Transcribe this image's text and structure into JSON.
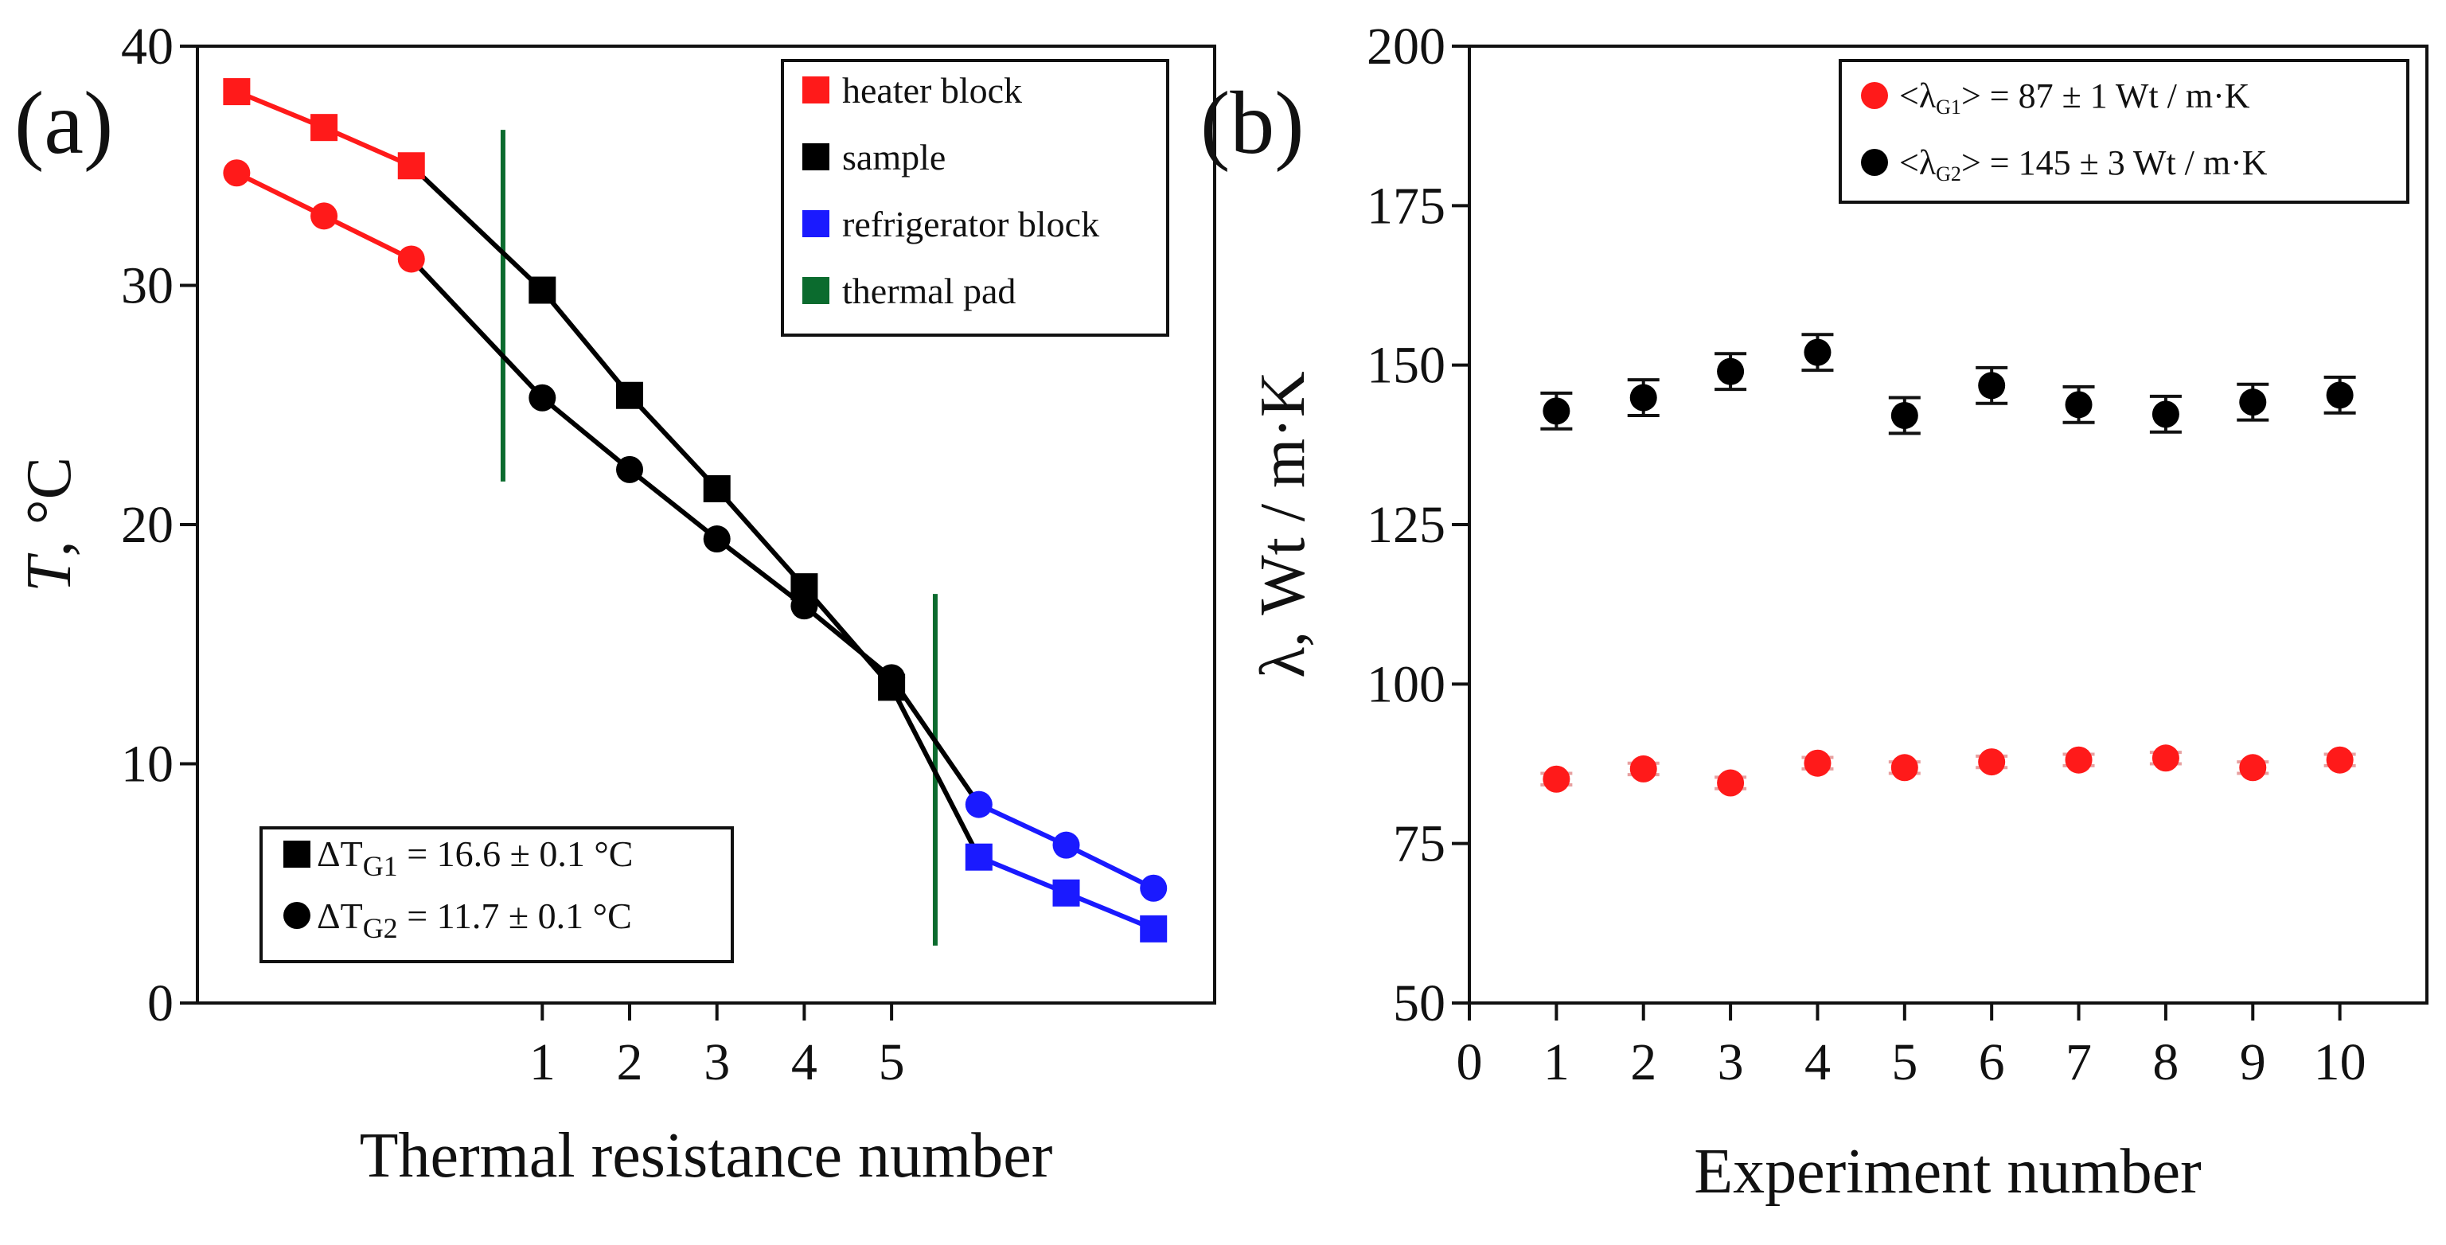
{
  "chart_data": [
    {
      "type": "line",
      "panel": "a",
      "panel_label": "(a)",
      "xlabel": "Thermal resistance number",
      "ylabel_italic": "T",
      "ylabel_rest": ", °C",
      "ylim": [
        0,
        40
      ],
      "xlim": [
        -2.95,
        8.7
      ],
      "y_ticks": [
        0,
        10,
        20,
        30,
        40
      ],
      "x_ticks": [
        1,
        2,
        3,
        4,
        5
      ],
      "x_tick_labels": [
        "1",
        "2",
        "3",
        "4",
        "5"
      ],
      "colors": {
        "heater": "#ff1a1a",
        "sample": "#000000",
        "refrigerator": "#1a1aff",
        "thermal_pad": "#0b6b2e"
      },
      "series": [
        {
          "name": "G1",
          "marker": "square",
          "heater_x": [
            -2.5,
            -1.5,
            -0.5
          ],
          "heater_y": [
            38.1,
            36.6,
            35.0
          ],
          "sample_x": [
            1,
            2,
            3,
            4,
            5
          ],
          "sample_y": [
            29.8,
            25.4,
            21.5,
            17.4,
            13.2
          ],
          "refrigerator_x": [
            6,
            7,
            8
          ],
          "refrigerator_y": [
            6.1,
            4.6,
            3.1
          ]
        },
        {
          "name": "G2",
          "marker": "circle",
          "heater_x": [
            -2.5,
            -1.5,
            -0.5
          ],
          "heater_y": [
            34.7,
            32.9,
            31.1
          ],
          "sample_x": [
            1,
            2,
            3,
            4,
            5
          ],
          "sample_y": [
            25.3,
            22.3,
            19.4,
            16.6,
            13.6
          ],
          "refrigerator_x": [
            6,
            7,
            8
          ],
          "refrigerator_y": [
            8.3,
            6.6,
            4.8
          ]
        }
      ],
      "thermal_pads": [
        {
          "x": 0.55,
          "y_range": [
            21.8,
            36.5
          ]
        },
        {
          "x": 5.5,
          "y_range": [
            2.4,
            17.1
          ]
        }
      ],
      "legend_top": [
        {
          "label": "heater block",
          "color": "#ff1a1a"
        },
        {
          "label": "sample",
          "color": "#000000"
        },
        {
          "label": "refrigerator block",
          "color": "#1a1aff"
        },
        {
          "label": "thermal pad",
          "color": "#0b6b2e"
        }
      ],
      "legend_bottom": [
        {
          "marker": "square",
          "prefix": "ΔT",
          "sub": "G1",
          "suffix": " = 16.6 ± 0.1 °C"
        },
        {
          "marker": "circle",
          "prefix": "ΔT",
          "sub": "G2",
          "suffix": " = 11.7 ± 0.1 °C"
        }
      ]
    },
    {
      "type": "scatter",
      "panel": "b",
      "panel_label": "(b)",
      "xlabel": "Experiment number",
      "ylabel": "λ, Wt / m·K",
      "xlim": [
        0,
        11
      ],
      "ylim": [
        50,
        200
      ],
      "x_ticks": [
        0,
        1,
        2,
        3,
        4,
        5,
        6,
        7,
        8,
        9,
        10
      ],
      "y_ticks": [
        50,
        75,
        100,
        125,
        150,
        175,
        200
      ],
      "series": [
        {
          "name": "G1",
          "color": "#ff1a1a",
          "x": [
            1,
            2,
            3,
            4,
            5,
            6,
            7,
            8,
            9,
            10
          ],
          "y": [
            85.1,
            86.7,
            84.5,
            87.6,
            86.9,
            87.8,
            88.1,
            88.4,
            86.9,
            88.1
          ],
          "err": [
            0.9,
            0.9,
            0.9,
            0.9,
            0.9,
            0.9,
            0.9,
            0.9,
            0.9,
            0.9
          ]
        },
        {
          "name": "G2",
          "color": "#000000",
          "x": [
            1,
            2,
            3,
            4,
            5,
            6,
            7,
            8,
            9,
            10
          ],
          "y": [
            142.8,
            144.9,
            149.0,
            152.0,
            142.1,
            146.8,
            143.8,
            142.3,
            144.2,
            145.3
          ],
          "err": [
            2.8,
            2.8,
            2.8,
            2.8,
            2.8,
            2.8,
            2.8,
            2.8,
            2.8,
            2.8
          ]
        }
      ],
      "legend": [
        {
          "color": "#ff1a1a",
          "prefix": "<λ",
          "sub": "G1",
          "suffix": "> = 87 ± 1 Wt / m·K"
        },
        {
          "color": "#000000",
          "prefix": "<λ",
          "sub": "G2",
          "suffix": "> = 145 ± 3 Wt / m·K"
        }
      ]
    }
  ]
}
